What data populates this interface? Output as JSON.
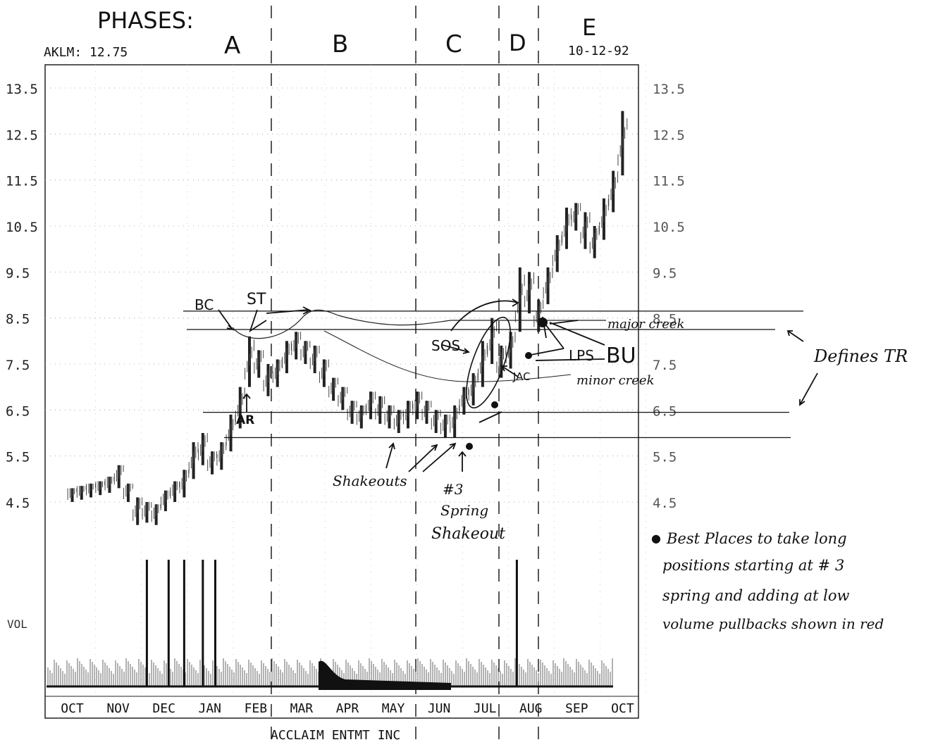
{
  "header": {
    "phases_title": "PHASES:",
    "ticker": "AKLM: 12.75",
    "date": "10-12-92",
    "company": "ACCLAIM ENTMT INC"
  },
  "phases": [
    {
      "label": "A"
    },
    {
      "label": "B"
    },
    {
      "label": "C"
    },
    {
      "label": "D"
    },
    {
      "label": "E"
    }
  ],
  "annotations": {
    "bc": "BC",
    "st": "ST",
    "ar": "AR",
    "sos": "SOS",
    "lps": "LPS",
    "bu": "BU",
    "jac": "JAC",
    "major_creek": "major creek",
    "minor_creek": "minor creek",
    "defines_tr": "Defines TR",
    "shakeouts": "Shakeouts",
    "spring_num": "#3",
    "spring_word": "Spring",
    "spring_shakeout": "Shakeout"
  },
  "note": {
    "bullet": "●",
    "line1": "Best Places to take long",
    "line2": "positions starting at # 3",
    "line3": "spring and adding at low",
    "line4": "volume pullbacks shown in red"
  },
  "chart_data": {
    "type": "bar",
    "title": "AKLM: 12.75",
    "subtitle": "ACCLAIM ENTMT INC",
    "ylabel_volume": "VOL",
    "y_ticks": [
      "13.5",
      "12.5",
      "11.5",
      "10.5",
      "9.5",
      "8.5",
      "7.5",
      "6.5",
      "5.5",
      "4.5"
    ],
    "y_tick_values": [
      13.5,
      12.5,
      11.5,
      10.5,
      9.5,
      8.5,
      7.5,
      6.5,
      5.5,
      4.5
    ],
    "ylim": [
      4.2,
      14.0
    ],
    "months": [
      "OCT",
      "NOV",
      "DEC",
      "JAN",
      "FEB",
      "MAR",
      "APR",
      "MAY",
      "JUN",
      "JUL",
      "AUG",
      "SEP",
      "OCT"
    ],
    "price_series": {
      "name": "AKLM weekly range",
      "points": [
        {
          "m": 0.0,
          "lo": 4.5,
          "hi": 4.8
        },
        {
          "m": 0.3,
          "lo": 4.55,
          "hi": 4.85
        },
        {
          "m": 0.6,
          "lo": 4.6,
          "hi": 4.9
        },
        {
          "m": 0.9,
          "lo": 4.65,
          "hi": 4.95
        },
        {
          "m": 1.2,
          "lo": 4.7,
          "hi": 5.05
        },
        {
          "m": 1.5,
          "lo": 4.8,
          "hi": 5.3
        },
        {
          "m": 1.8,
          "lo": 4.5,
          "hi": 4.9
        },
        {
          "m": 2.1,
          "lo": 4.0,
          "hi": 4.6
        },
        {
          "m": 2.4,
          "lo": 4.05,
          "hi": 4.5
        },
        {
          "m": 2.7,
          "lo": 4.0,
          "hi": 4.45
        },
        {
          "m": 3.0,
          "lo": 4.3,
          "hi": 4.75
        },
        {
          "m": 3.3,
          "lo": 4.5,
          "hi": 4.95
        },
        {
          "m": 3.6,
          "lo": 4.6,
          "hi": 5.2
        },
        {
          "m": 3.9,
          "lo": 5.0,
          "hi": 5.8
        },
        {
          "m": 4.2,
          "lo": 5.3,
          "hi": 6.0
        },
        {
          "m": 4.5,
          "lo": 5.1,
          "hi": 5.6
        },
        {
          "m": 4.8,
          "lo": 5.2,
          "hi": 5.8
        },
        {
          "m": 5.1,
          "lo": 5.6,
          "hi": 6.4
        },
        {
          "m": 5.4,
          "lo": 6.1,
          "hi": 7.0
        },
        {
          "m": 5.7,
          "lo": 7.0,
          "hi": 8.1
        },
        {
          "m": 6.0,
          "lo": 7.2,
          "hi": 7.8
        },
        {
          "m": 6.3,
          "lo": 6.8,
          "hi": 7.5
        },
        {
          "m": 6.6,
          "lo": 7.0,
          "hi": 7.6
        },
        {
          "m": 6.9,
          "lo": 7.3,
          "hi": 8.0
        },
        {
          "m": 7.2,
          "lo": 7.6,
          "hi": 8.2
        },
        {
          "m": 7.5,
          "lo": 7.5,
          "hi": 8.0
        },
        {
          "m": 7.8,
          "lo": 7.3,
          "hi": 7.9
        },
        {
          "m": 8.1,
          "lo": 7.0,
          "hi": 7.6
        },
        {
          "m": 8.4,
          "lo": 6.7,
          "hi": 7.2
        },
        {
          "m": 8.7,
          "lo": 6.5,
          "hi": 7.0
        },
        {
          "m": 9.0,
          "lo": 6.2,
          "hi": 6.7
        },
        {
          "m": 9.3,
          "lo": 6.1,
          "hi": 6.6
        },
        {
          "m": 9.6,
          "lo": 6.3,
          "hi": 6.9
        },
        {
          "m": 9.9,
          "lo": 6.2,
          "hi": 6.8
        },
        {
          "m": 10.2,
          "lo": 6.1,
          "hi": 6.6
        },
        {
          "m": 10.5,
          "lo": 6.0,
          "hi": 6.5
        },
        {
          "m": 10.8,
          "lo": 6.1,
          "hi": 6.7
        },
        {
          "m": 11.1,
          "lo": 6.3,
          "hi": 6.9
        },
        {
          "m": 11.4,
          "lo": 6.2,
          "hi": 6.7
        },
        {
          "m": 11.7,
          "lo": 6.0,
          "hi": 6.5
        },
        {
          "m": 12.0,
          "lo": 5.9,
          "hi": 6.4
        },
        {
          "m": 12.3,
          "lo": 5.9,
          "hi": 6.6
        },
        {
          "m": 12.6,
          "lo": 6.4,
          "hi": 7.0
        },
        {
          "m": 12.9,
          "lo": 6.6,
          "hi": 7.3
        },
        {
          "m": 13.2,
          "lo": 7.0,
          "hi": 8.0
        },
        {
          "m": 13.5,
          "lo": 7.5,
          "hi": 8.5
        },
        {
          "m": 13.8,
          "lo": 7.2,
          "hi": 7.9
        },
        {
          "m": 14.1,
          "lo": 7.4,
          "hi": 8.2
        },
        {
          "m": 14.4,
          "lo": 8.2,
          "hi": 9.6
        },
        {
          "m": 14.7,
          "lo": 8.6,
          "hi": 9.5
        },
        {
          "m": 15.0,
          "lo": 8.2,
          "hi": 8.9
        },
        {
          "m": 15.3,
          "lo": 8.8,
          "hi": 9.6
        },
        {
          "m": 15.6,
          "lo": 9.5,
          "hi": 10.3
        },
        {
          "m": 15.9,
          "lo": 10.0,
          "hi": 10.9
        },
        {
          "m": 16.2,
          "lo": 10.4,
          "hi": 11.0
        },
        {
          "m": 16.5,
          "lo": 10.0,
          "hi": 10.8
        },
        {
          "m": 16.8,
          "lo": 9.8,
          "hi": 10.5
        },
        {
          "m": 17.1,
          "lo": 10.2,
          "hi": 11.1
        },
        {
          "m": 17.4,
          "lo": 10.8,
          "hi": 11.7
        },
        {
          "m": 17.7,
          "lo": 11.6,
          "hi": 13.0
        }
      ]
    },
    "volume_spikes": [
      2.4,
      3.1,
      3.6,
      4.2,
      4.6,
      14.3
    ],
    "horizontal_levels": [
      8.65,
      8.25,
      6.45,
      5.9
    ],
    "phase_boundaries_month_index": [
      5.0,
      9.0,
      10.0,
      10.8
    ],
    "grid": true
  }
}
